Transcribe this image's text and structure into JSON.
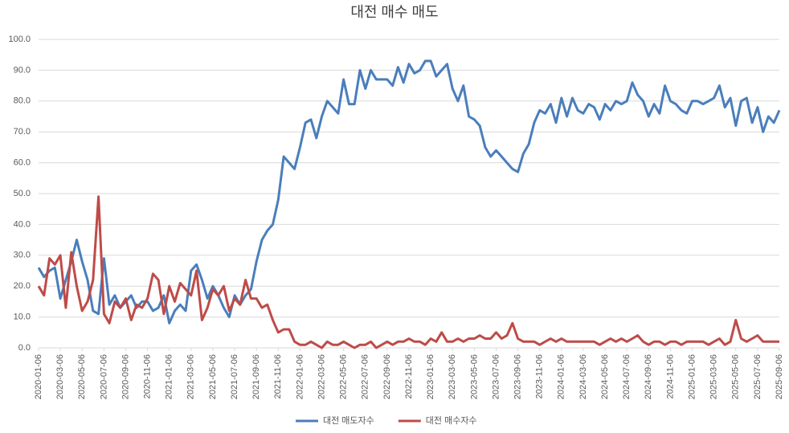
{
  "chart_data": {
    "type": "line",
    "title": "대전 매수 매도",
    "categories": [
      "2020-01-06",
      null,
      null,
      null,
      "2020-03-06",
      null,
      null,
      null,
      "2020-05-06",
      null,
      null,
      null,
      "2020-07-06",
      null,
      null,
      null,
      "2020-09-06",
      null,
      null,
      null,
      "2020-11-06",
      null,
      null,
      null,
      "2021-01-06",
      null,
      null,
      null,
      "2021-03-06",
      null,
      null,
      null,
      "2021-05-06",
      null,
      null,
      null,
      "2021-07-06",
      null,
      null,
      null,
      "2021-09-06",
      null,
      null,
      null,
      "2021-11-06",
      null,
      null,
      null,
      "2022-01-06",
      null,
      null,
      null,
      "2022-03-06",
      null,
      null,
      null,
      "2022-05-06",
      null,
      null,
      null,
      "2022-07-06",
      null,
      null,
      null,
      "2022-09-06",
      null,
      null,
      null,
      "2022-11-06",
      null,
      null,
      null,
      "2023-01-06",
      null,
      null,
      null,
      "2023-03-06",
      null,
      null,
      null,
      "2023-05-06",
      null,
      null,
      null,
      "2023-07-06",
      null,
      null,
      null,
      "2023-09-06",
      null,
      null,
      null,
      "2023-11-06",
      null,
      null,
      null,
      "2024-01-06",
      null,
      null,
      null,
      "2024-03-06",
      null,
      null,
      null,
      "2024-05-06",
      null,
      null,
      null,
      "2024-07-06",
      null,
      null,
      null,
      "2024-09-06",
      null,
      null,
      null,
      "2024-11-06",
      null,
      null,
      null,
      "2025-01-06",
      null,
      null,
      null,
      "2025-03-06",
      null,
      null,
      null,
      "2025-05-06",
      null,
      null,
      null,
      "2025-07-06",
      null,
      null,
      null,
      "2025-09-06"
    ],
    "series": [
      {
        "name": "대전 매도자수",
        "color": "#4a7ebb",
        "values": [
          26,
          23,
          25,
          26,
          16,
          22,
          28,
          35,
          28,
          22,
          12,
          11,
          29,
          14,
          17,
          13,
          15,
          17,
          13,
          15,
          15,
          12,
          13,
          17,
          8,
          12,
          14,
          12,
          25,
          27,
          22,
          16,
          20,
          17,
          13,
          10,
          17,
          14,
          17,
          19,
          28,
          35,
          38,
          40,
          48,
          62,
          60,
          58,
          65,
          73,
          74,
          68,
          75,
          80,
          78,
          76,
          87,
          79,
          79,
          90,
          84,
          90,
          87,
          87,
          87,
          85,
          91,
          86,
          92,
          89,
          90,
          93,
          93,
          88,
          90,
          92,
          84,
          80,
          85,
          75,
          74,
          72,
          65,
          62,
          64,
          62,
          60,
          58,
          57,
          63,
          66,
          73,
          77,
          76,
          79,
          73,
          81,
          75,
          81,
          77,
          76,
          79,
          78,
          74,
          79,
          77,
          80,
          79,
          80,
          86,
          82,
          80,
          75,
          79,
          76,
          85,
          80,
          79,
          77,
          76,
          80,
          80,
          79,
          80,
          81,
          85,
          78,
          81,
          72,
          80,
          81,
          73,
          78,
          70,
          75,
          73,
          77
        ]
      },
      {
        "name": "대전 매수자수",
        "color": "#be4b48",
        "values": [
          20,
          17,
          29,
          27,
          30,
          13,
          31,
          20,
          12,
          15,
          22,
          49,
          11,
          8,
          15,
          13,
          16,
          9,
          14,
          13,
          16,
          24,
          22,
          11,
          20,
          15,
          21,
          19,
          17,
          25,
          9,
          13,
          19,
          17,
          20,
          12,
          16,
          14,
          22,
          16,
          16,
          13,
          14,
          9,
          5,
          6,
          6,
          2,
          1,
          1,
          2,
          1,
          0,
          2,
          1,
          1,
          2,
          1,
          0,
          1,
          1,
          2,
          0,
          1,
          2,
          1,
          2,
          2,
          3,
          2,
          2,
          1,
          3,
          2,
          5,
          2,
          2,
          3,
          2,
          3,
          3,
          4,
          3,
          3,
          5,
          3,
          4,
          8,
          3,
          2,
          2,
          2,
          1,
          2,
          3,
          2,
          3,
          2,
          2,
          2,
          2,
          2,
          2,
          1,
          2,
          3,
          2,
          3,
          2,
          3,
          4,
          2,
          1,
          2,
          2,
          1,
          2,
          2,
          1,
          2,
          2,
          2,
          2,
          1,
          2,
          3,
          1,
          2,
          9,
          3,
          2,
          3,
          4,
          2,
          2,
          2,
          2
        ]
      }
    ],
    "ylim": [
      0,
      100
    ],
    "yticks": [
      {
        "value": 0,
        "label": "0.0"
      },
      {
        "value": 10,
        "label": "10.0"
      },
      {
        "value": 20,
        "label": "20.0"
      },
      {
        "value": 30,
        "label": "30.0"
      },
      {
        "value": 40,
        "label": "40.0"
      },
      {
        "value": 50,
        "label": "50.0"
      },
      {
        "value": 60,
        "label": "60.0"
      },
      {
        "value": 70,
        "label": "70.0"
      },
      {
        "value": 80,
        "label": "80.0"
      },
      {
        "value": 90,
        "label": "90.0"
      },
      {
        "value": 100,
        "label": "100.0"
      }
    ],
    "grid": true,
    "legend": "bottom"
  }
}
